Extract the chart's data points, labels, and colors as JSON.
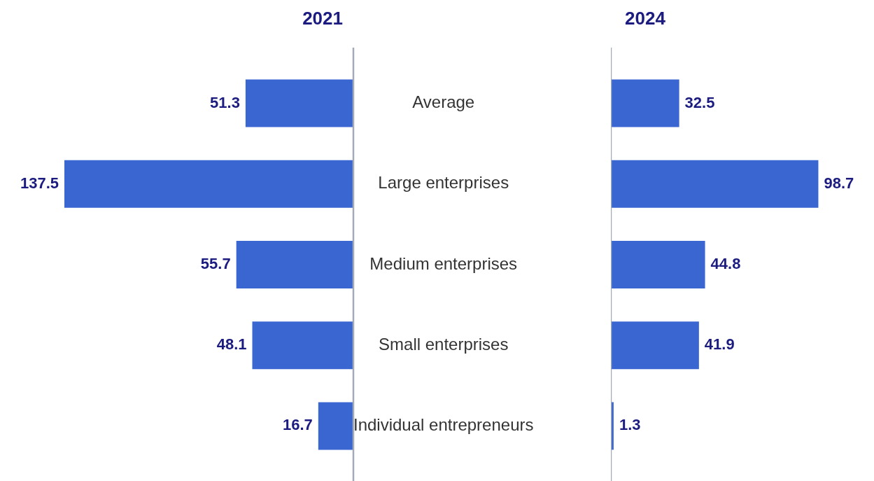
{
  "chart_data": [
    {
      "type": "bar",
      "orientation": "horizontal",
      "title": "2021",
      "categories": [
        "Average",
        "Large enterprises",
        "Medium enterprises",
        "Small enterprises",
        "Individual entrepreneurs"
      ],
      "values": [
        51.3,
        137.5,
        55.7,
        48.1,
        16.7
      ],
      "color": "#3a66d1",
      "data_labels": true,
      "tick_labels": "y"
    },
    {
      "type": "bar",
      "orientation": "horizontal",
      "title": "2024",
      "categories": [
        null,
        null,
        null,
        null,
        null
      ],
      "values": [
        32.5,
        98.7,
        44.8,
        41.9,
        1.3
      ],
      "color": "#3a66d1",
      "data_labels": true,
      "tick_labels": false
    }
  ]
}
